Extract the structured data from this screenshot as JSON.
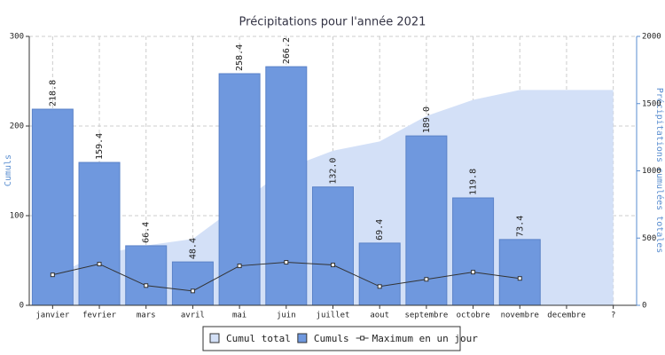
{
  "chart_data": {
    "type": "bar",
    "title": "Précipitations pour l'année 2021",
    "y_label": "Cumuls",
    "y2_label": "Précipitations cumulées totales",
    "categories": [
      "janvier",
      "fevrier",
      "mars",
      "avril",
      "mai",
      "juin",
      "juillet",
      "aout",
      "septembre",
      "octobre",
      "novembre",
      "decembre",
      "?"
    ],
    "series": [
      {
        "name": "Cumul total",
        "type": "area",
        "axis": "y2",
        "color": "#d3e0f7",
        "values": [
          218.8,
          378.2,
          444.6,
          493.0,
          751.4,
          1017.6,
          1149.6,
          1219.0,
          1408.0,
          1527.8,
          1601.2,
          1601.2,
          1601.2
        ]
      },
      {
        "name": "Cumuls",
        "type": "bar",
        "axis": "y",
        "color": "#6f98de",
        "values": [
          218.8,
          159.4,
          66.4,
          48.4,
          258.4,
          266.2,
          132.0,
          69.4,
          189.0,
          119.8,
          73.4,
          null,
          null
        ],
        "value_labels": [
          "218.8",
          "159.4",
          "66.4",
          "48.4",
          "258.4",
          "266.2",
          "132.0",
          "69.4",
          "189.0",
          "119.8",
          "73.4",
          null,
          null
        ]
      },
      {
        "name": "Maximum en un jour",
        "type": "line",
        "axis": "y",
        "color": "#333333",
        "values": [
          34,
          46,
          22,
          16,
          44,
          48,
          45,
          21,
          29,
          37,
          30,
          null,
          null
        ]
      }
    ],
    "ylim": [
      0,
      300
    ],
    "yticks": [
      0,
      100,
      200,
      300
    ],
    "y2lim": [
      0,
      2000
    ],
    "y2ticks": [
      0,
      500,
      1000,
      1500,
      2000
    ],
    "grid": true,
    "legend": "bottom"
  }
}
